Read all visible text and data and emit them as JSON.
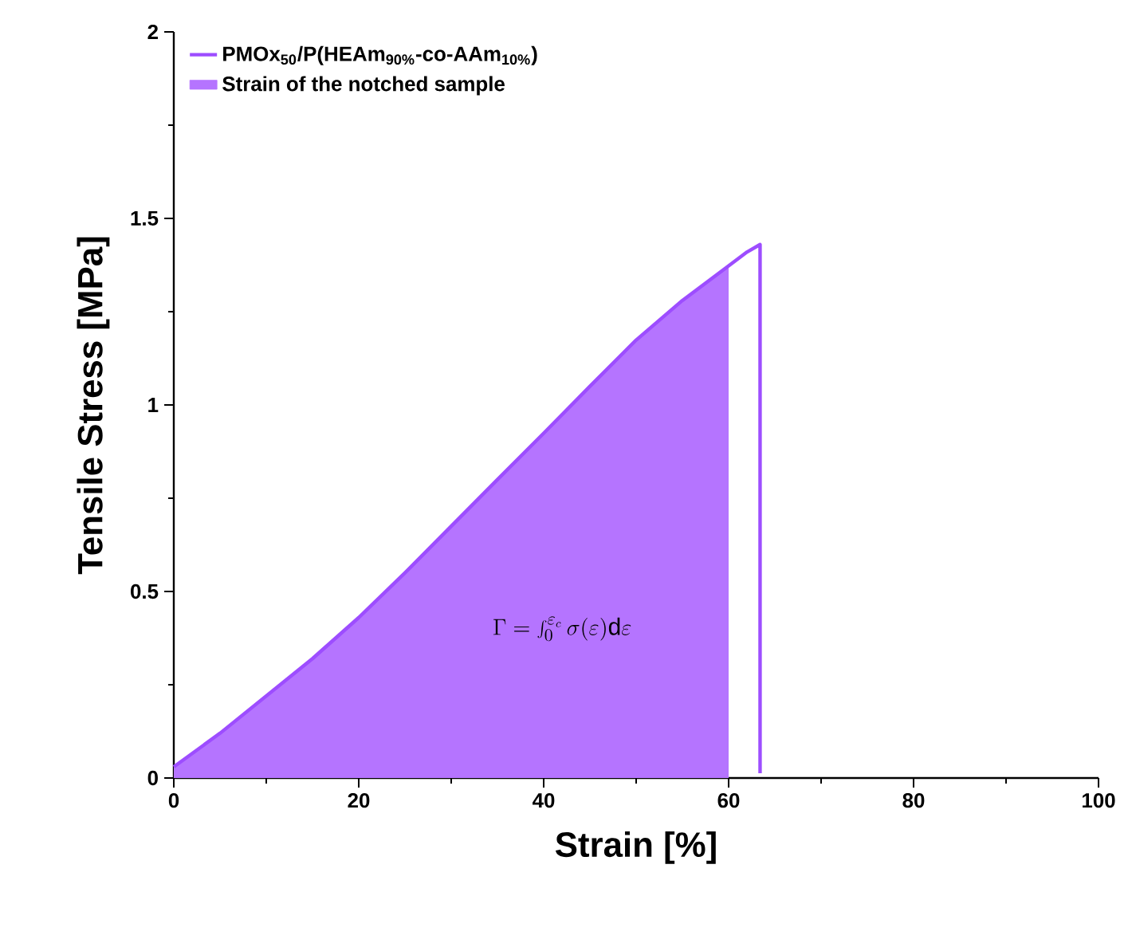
{
  "chart_data": {
    "type": "line",
    "xlabel": "Strain [%]",
    "ylabel": "Tensile Stress [MPa]",
    "series": [
      {
        "name": "PMOx$_{50}$/P(HEAm$_{90%}$-co-AAm$_{10%}$)",
        "color": "#9d4dff",
        "x": [
          0,
          5,
          10,
          15,
          20,
          25,
          30,
          35,
          40,
          45,
          50,
          55,
          60,
          62,
          63.4,
          63.4
        ],
        "values": [
          0.03,
          0.12,
          0.22,
          0.32,
          0.43,
          0.55,
          0.675,
          0.8,
          0.924,
          1.05,
          1.174,
          1.28,
          1.373,
          1.41,
          1.43,
          0.013
        ]
      },
      {
        "name": "Strain of the notched sample",
        "type": "area",
        "color": "#b574ff",
        "x": [
          0,
          5,
          10,
          15,
          20,
          25,
          30,
          35,
          40,
          45,
          50,
          55,
          60
        ],
        "values": [
          0.03,
          0.12,
          0.22,
          0.32,
          0.43,
          0.55,
          0.675,
          0.8,
          0.924,
          1.05,
          1.174,
          1.28,
          1.373
        ]
      }
    ],
    "annotations": [
      "\\Gamma = \\int_{0}^{\\varepsilon_{c}}\\sigma(\\varepsilon)\\mathrm{d}\\varepsilon"
    ],
    "xlim": [
      0,
      100
    ],
    "xticks": [
      0,
      20,
      40,
      60,
      80,
      100
    ],
    "ylim": [
      0,
      2
    ],
    "yticks": [
      0,
      0.5,
      1,
      1.5,
      2
    ],
    "legend": "top left",
    "grid": false
  }
}
